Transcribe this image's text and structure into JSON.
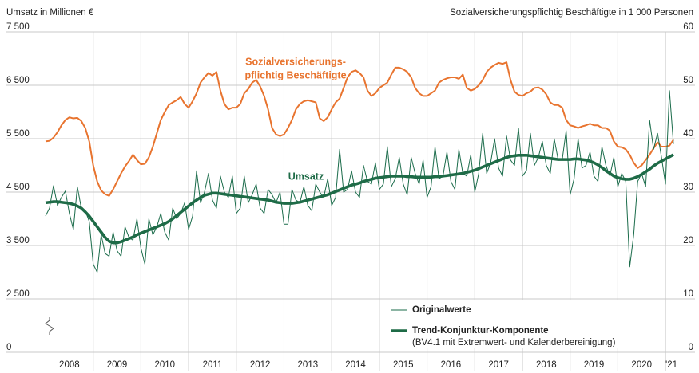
{
  "chart_data": {
    "type": "line",
    "ylabel": "Umsatz in Millionen €",
    "y2label": "Sozialversicherungspflichtig Beschäftigte in 1 000 Personen",
    "annotations": [
      "Sozialversicherungs-",
      "pflichtig Beschäftigte",
      "Umsatz"
    ],
    "legend_note": "(BV4.1 mit Extremwert- und Kalenderbereinigung)",
    "legend": "lower right",
    "grid": true,
    "axis_break": true,
    "x": [
      0,
      1,
      2,
      3,
      4,
      5,
      6,
      7,
      8,
      9,
      10,
      11,
      12,
      13,
      14,
      15,
      16,
      17,
      18,
      19,
      20,
      21,
      22,
      23,
      24,
      25,
      26,
      27,
      28,
      29,
      30,
      31,
      32,
      33,
      34,
      35,
      36,
      37,
      38,
      39,
      40,
      41,
      42,
      43,
      44,
      45,
      46,
      47,
      48,
      49,
      50,
      51,
      52,
      53,
      54,
      55,
      56,
      57,
      58,
      59,
      60,
      61,
      62,
      63,
      64,
      65,
      66,
      67,
      68,
      69,
      70,
      71,
      72,
      73,
      74,
      75,
      76,
      77,
      78,
      79,
      80,
      81,
      82,
      83,
      84,
      85,
      86,
      87,
      88,
      89,
      90,
      91,
      92,
      93,
      94,
      95,
      96,
      97,
      98,
      99,
      100,
      101,
      102,
      103,
      104,
      105,
      106,
      107,
      108,
      109,
      110,
      111,
      112,
      113,
      114,
      115,
      116,
      117,
      118,
      119,
      120,
      121,
      122,
      123,
      124,
      125,
      126,
      127,
      128,
      129,
      130,
      131,
      132,
      133,
      134,
      135,
      136,
      137,
      138,
      139,
      140,
      141,
      142,
      143,
      144,
      145,
      146,
      147,
      148,
      149,
      150,
      151,
      152,
      153,
      154,
      155,
      156,
      157,
      158
    ],
    "xlim": [
      0,
      159
    ],
    "xticks": [
      {
        "value": 6,
        "label": "2008"
      },
      {
        "value": 18,
        "label": "2009"
      },
      {
        "value": 30,
        "label": "2010"
      },
      {
        "value": 42,
        "label": "2011"
      },
      {
        "value": 54,
        "label": "2012"
      },
      {
        "value": 66,
        "label": "2013"
      },
      {
        "value": 78,
        "label": "2014"
      },
      {
        "value": 90,
        "label": "2015"
      },
      {
        "value": 102,
        "label": "2016"
      },
      {
        "value": 114,
        "label": "2017"
      },
      {
        "value": 126,
        "label": "2018"
      },
      {
        "value": 138,
        "label": "2019"
      },
      {
        "value": 150,
        "label": "2020"
      },
      {
        "value": 157.5,
        "label": "'21"
      }
    ],
    "xgrid": [
      12,
      24,
      36,
      48,
      60,
      72,
      84,
      96,
      108,
      120,
      132,
      144,
      156
    ],
    "ylim": [
      1500,
      7500
    ],
    "yticks": [
      {
        "value": 0,
        "label": "0"
      },
      {
        "value": 2500,
        "label": "2 500"
      },
      {
        "value": 3500,
        "label": "3 500"
      },
      {
        "value": 4500,
        "label": "4 500"
      },
      {
        "value": 5500,
        "label": "5 500"
      },
      {
        "value": 6500,
        "label": "6 500"
      },
      {
        "value": 7500,
        "label": "7 500"
      }
    ],
    "y2lim": [
      0,
      60
    ],
    "y2ticks": [
      0,
      10,
      20,
      30,
      40,
      50,
      60
    ],
    "series": [
      {
        "axis": "y2",
        "color": "#e8742f",
        "width": 2,
        "values": [
          39.5,
          39.6,
          40.2,
          41.2,
          42.5,
          43.5,
          44.0,
          43.8,
          43.9,
          43.3,
          42.0,
          39.5,
          35.0,
          32.0,
          30.3,
          29.6,
          29.3,
          30.5,
          32.0,
          33.5,
          34.8,
          35.8,
          37.0,
          36.0,
          35.2,
          35.3,
          36.5,
          38.5,
          41.0,
          43.5,
          45.0,
          46.3,
          46.8,
          47.2,
          47.8,
          46.5,
          45.8,
          47.0,
          48.5,
          50.5,
          51.5,
          52.3,
          51.8,
          52.5,
          49.0,
          46.5,
          45.5,
          45.8,
          45.8,
          46.5,
          48.5,
          49.3,
          50.5,
          51.0,
          49.8,
          48.0,
          45.5,
          42.0,
          40.8,
          40.5,
          40.8,
          42.0,
          43.5,
          45.5,
          46.5,
          47.0,
          47.2,
          47.0,
          46.8,
          43.8,
          43.3,
          44.0,
          45.5,
          46.8,
          47.5,
          49.5,
          51.5,
          52.5,
          52.8,
          52.3,
          51.5,
          49.0,
          48.0,
          48.5,
          49.5,
          50.0,
          50.5,
          52.0,
          53.3,
          53.3,
          53.0,
          52.5,
          51.5,
          49.5,
          48.5,
          48.0,
          48.0,
          48.5,
          49.0,
          50.5,
          51.0,
          51.3,
          51.5,
          51.5,
          51.2,
          52.0,
          49.5,
          49.0,
          49.3,
          50.0,
          51.0,
          52.5,
          53.3,
          53.8,
          54.2,
          54.0,
          54.3,
          51.0,
          48.8,
          48.2,
          48.0,
          48.5,
          48.8,
          49.5,
          49.6,
          49.2,
          48.3,
          46.8,
          46.3,
          46.3,
          45.8,
          43.5,
          42.5,
          42.3,
          42.0,
          42.3,
          42.5,
          42.8,
          42.5,
          42.5,
          42.0,
          42.0,
          41.5,
          39.5,
          38.5,
          38.4,
          38.0,
          37.0,
          35.5,
          34.5,
          35.0,
          36.0,
          37.0,
          38.2,
          39.3,
          38.5,
          38.5,
          38.7,
          39.8
        ]
      },
      {
        "name": "Originalwerte",
        "color": "#1a6b4a",
        "width": 1,
        "values": [
          4050,
          4200,
          4620,
          4250,
          4400,
          4520,
          4100,
          3800,
          4600,
          4200,
          4150,
          3950,
          3150,
          3000,
          3700,
          3350,
          3300,
          3750,
          3400,
          3300,
          3850,
          3650,
          3600,
          4000,
          3450,
          3150,
          4000,
          3700,
          3850,
          4100,
          3750,
          3600,
          4200,
          4000,
          4100,
          4300,
          3800,
          4050,
          4900,
          4300,
          4500,
          4850,
          4350,
          4200,
          4800,
          4500,
          4400,
          4800,
          4100,
          4200,
          4800,
          4300,
          4450,
          4650,
          4200,
          4100,
          4550,
          4450,
          4300,
          4500,
          3900,
          3900,
          4550,
          4350,
          4300,
          4600,
          4250,
          4150,
          4650,
          4500,
          4400,
          4750,
          4250,
          4400,
          5300,
          4500,
          4550,
          4900,
          4500,
          4400,
          5000,
          4700,
          4650,
          5050,
          4550,
          4650,
          5350,
          4600,
          4750,
          5150,
          4650,
          4450,
          5150,
          4850,
          4650,
          5100,
          4400,
          4600,
          5350,
          4750,
          4800,
          5250,
          4700,
          4550,
          5300,
          4850,
          4800,
          5200,
          4500,
          4850,
          5600,
          4850,
          5050,
          5500,
          4950,
          4800,
          5550,
          5100,
          5000,
          5700,
          4800,
          4900,
          5600,
          5000,
          5150,
          5450,
          5000,
          4850,
          5500,
          5100,
          5100,
          5650,
          4450,
          4750,
          5500,
          4950,
          5000,
          5250,
          4800,
          4700,
          5350,
          5000,
          4800,
          5150,
          4600,
          4850,
          4700,
          3100,
          3700,
          4700,
          4850,
          4600,
          5850,
          5300,
          5600,
          5150,
          4650,
          6400,
          5400
        ]
      },
      {
        "name": "Trend-Konjunktur-Komponente",
        "color": "#1e6b47",
        "width": 3.6,
        "values": [
          4300,
          4310,
          4320,
          4320,
          4310,
          4300,
          4290,
          4270,
          4240,
          4200,
          4130,
          4050,
          3950,
          3850,
          3750,
          3650,
          3580,
          3550,
          3550,
          3570,
          3600,
          3630,
          3660,
          3700,
          3730,
          3760,
          3790,
          3820,
          3850,
          3880,
          3910,
          3950,
          4000,
          4060,
          4120,
          4180,
          4240,
          4300,
          4350,
          4400,
          4440,
          4460,
          4480,
          4480,
          4470,
          4460,
          4450,
          4440,
          4430,
          4420,
          4410,
          4400,
          4390,
          4380,
          4370,
          4360,
          4350,
          4330,
          4310,
          4300,
          4290,
          4290,
          4290,
          4300,
          4310,
          4330,
          4350,
          4370,
          4390,
          4410,
          4430,
          4450,
          4480,
          4510,
          4540,
          4570,
          4600,
          4630,
          4650,
          4670,
          4700,
          4720,
          4740,
          4760,
          4770,
          4780,
          4790,
          4800,
          4800,
          4800,
          4800,
          4790,
          4790,
          4780,
          4780,
          4780,
          4780,
          4780,
          4790,
          4790,
          4800,
          4810,
          4820,
          4830,
          4840,
          4850,
          4870,
          4890,
          4910,
          4940,
          4970,
          5000,
          5030,
          5060,
          5090,
          5120,
          5150,
          5170,
          5180,
          5190,
          5190,
          5190,
          5180,
          5170,
          5160,
          5150,
          5140,
          5130,
          5120,
          5110,
          5110,
          5110,
          5110,
          5120,
          5120,
          5110,
          5100,
          5080,
          5050,
          5010,
          4960,
          4900,
          4850,
          4800,
          4770,
          4750,
          4740,
          4740,
          4760,
          4790,
          4830,
          4880,
          4930,
          4990,
          5040,
          5080,
          5120,
          5160,
          5200
        ]
      }
    ]
  }
}
